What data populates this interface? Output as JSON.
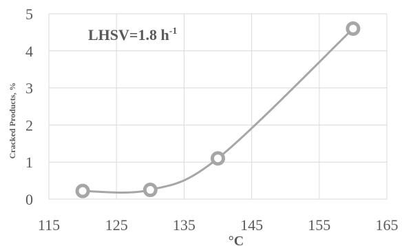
{
  "chart_data": {
    "type": "line",
    "title": "",
    "xlabel": "°C",
    "ylabel": "Cracked Products, %",
    "annotation": {
      "text": "LHSV=1.8 h",
      "superscript": "-1"
    },
    "x": [
      120,
      130,
      140,
      160
    ],
    "series": [
      {
        "values": [
          0.22,
          0.25,
          1.1,
          4.6
        ],
        "color": "#a6a6a6",
        "marker": "circle",
        "smooth": true
      }
    ],
    "xlim": [
      115,
      165
    ],
    "ylim": [
      0,
      5
    ],
    "xticks": [
      115,
      125,
      135,
      145,
      155,
      165
    ],
    "yticks": [
      0,
      1,
      2,
      3,
      4,
      5
    ],
    "xtick_labels": [
      "115",
      "125",
      "135",
      "145",
      "155",
      "165"
    ],
    "ytick_labels": [
      "0",
      "1",
      "2",
      "3",
      "4",
      "5"
    ],
    "grid": true
  }
}
